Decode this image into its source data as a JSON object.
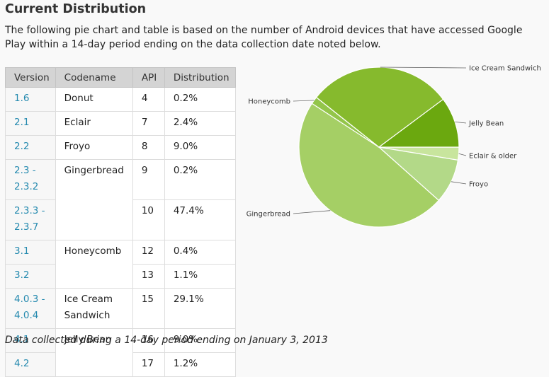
{
  "heading": "Current Distribution",
  "intro": "The following pie chart and table is based on the number of Android devices that have accessed Google Play within a 14-day period ending on the data collection date noted below.",
  "table": {
    "headers": [
      "Version",
      "Codename",
      "API",
      "Distribution"
    ],
    "rows": [
      {
        "version": "1.6",
        "codename": "Donut",
        "api": "4",
        "dist": "0.2%"
      },
      {
        "version": "2.1",
        "codename": "Eclair",
        "api": "7",
        "dist": "2.4%"
      },
      {
        "version": "2.2",
        "codename": "Froyo",
        "api": "8",
        "dist": "9.0%"
      },
      {
        "version": "2.3 - 2.3.2",
        "codename": "Gingerbread",
        "api": "9",
        "dist": "0.2%"
      },
      {
        "version": "2.3.3 - 2.3.7",
        "codename": "",
        "api": "10",
        "dist": "47.4%"
      },
      {
        "version": "3.1",
        "codename": "Honeycomb",
        "api": "12",
        "dist": "0.4%"
      },
      {
        "version": "3.2",
        "codename": "",
        "api": "13",
        "dist": "1.1%"
      },
      {
        "version": "4.0.3 - 4.0.4",
        "codename": "Ice Cream Sandwich",
        "api": "15",
        "dist": "29.1%"
      },
      {
        "version": "4.1",
        "codename": "Jelly Bean",
        "api": "16",
        "dist": "9.0%"
      },
      {
        "version": "4.2",
        "codename": "",
        "api": "17",
        "dist": "1.2%"
      }
    ]
  },
  "footnote": "Data collected during a 14-day period ending on January 3, 2013",
  "chart_data": {
    "type": "pie",
    "title": "",
    "slices": [
      {
        "label": "Eclair & older",
        "value": 2.6,
        "color": "#c8e59d"
      },
      {
        "label": "Froyo",
        "value": 9.0,
        "color": "#b3d988"
      },
      {
        "label": "Gingerbread",
        "value": 47.6,
        "color": "#a5cf65"
      },
      {
        "label": "Honeycomb",
        "value": 1.5,
        "color": "#93c54a"
      },
      {
        "label": "Ice Cream Sandwich",
        "value": 29.1,
        "color": "#86ba2d"
      },
      {
        "label": "Jelly Bean",
        "value": 10.2,
        "color": "#6ba80f"
      }
    ]
  }
}
